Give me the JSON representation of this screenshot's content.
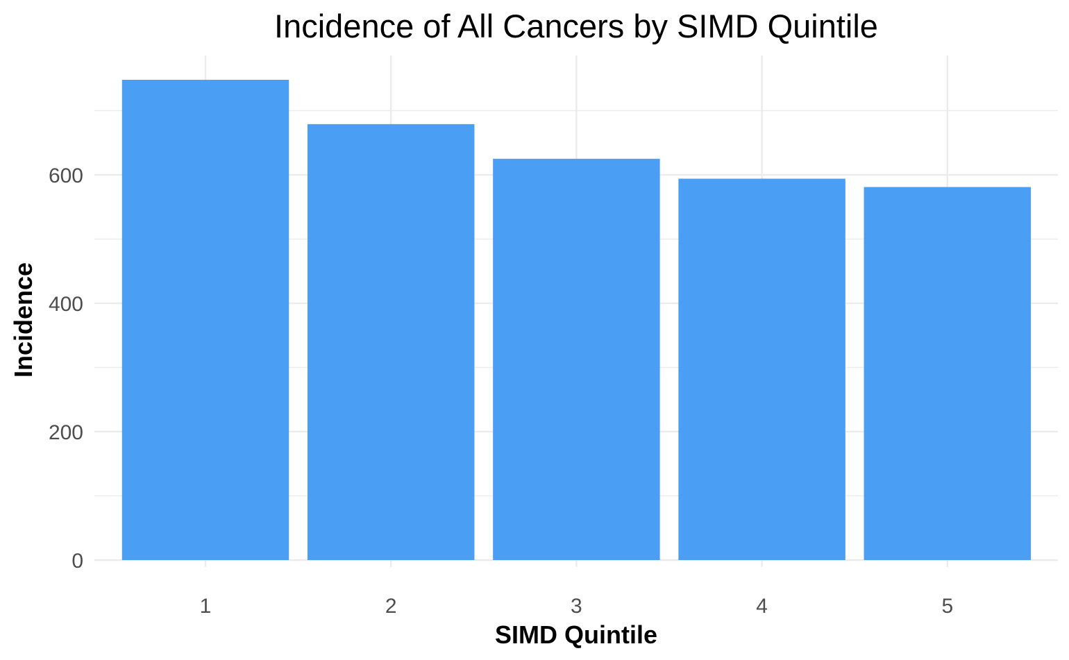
{
  "chart_data": {
    "type": "bar",
    "title": "Incidence of All Cancers by SIMD Quintile",
    "xlabel": "SIMD Quintile",
    "ylabel": "Incidence",
    "categories": [
      "1",
      "2",
      "3",
      "4",
      "5"
    ],
    "values": [
      748,
      679,
      625,
      594,
      581
    ],
    "ylim": [
      0,
      748
    ],
    "yticks": [
      0,
      200,
      400,
      600
    ],
    "grid": true,
    "legend": "none",
    "bar_color": "#4A9FF5"
  }
}
